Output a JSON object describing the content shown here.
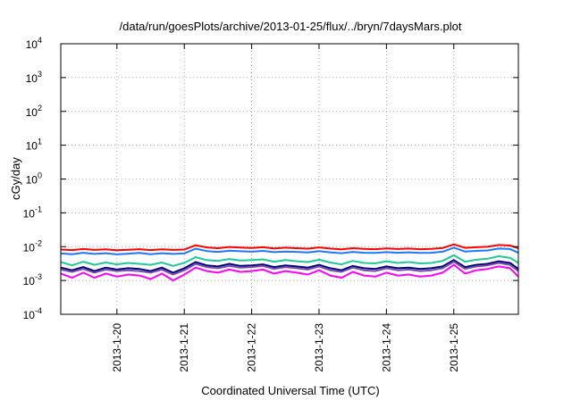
{
  "chart_data": {
    "type": "line",
    "title": "/data/run/goesPlots/archive/2013-01-25/flux/../bryn/7daysMars.plot",
    "xlabel": "Coordinated Universal Time (UTC)",
    "ylabel": "cGy/day",
    "yscale": "log",
    "ylim": [
      0.0001,
      10000
    ],
    "y_ticks": [
      {
        "base": "10",
        "exp": "-4",
        "value": 0.0001
      },
      {
        "base": "10",
        "exp": "-3",
        "value": 0.001
      },
      {
        "base": "10",
        "exp": "-2",
        "value": 0.01
      },
      {
        "base": "10",
        "exp": "-1",
        "value": 0.1
      },
      {
        "base": "10",
        "exp": "0",
        "value": 1
      },
      {
        "base": "10",
        "exp": "1",
        "value": 10
      },
      {
        "base": "10",
        "exp": "2",
        "value": 100
      },
      {
        "base": "10",
        "exp": "3",
        "value": 1000
      },
      {
        "base": "10",
        "exp": "4",
        "value": 10000
      }
    ],
    "xlim": [
      "2013-01-19 04:00",
      "2013-01-25 23:00"
    ],
    "x_ticks": [
      "2013-1-20",
      "2013-1-21",
      "2013-1-22",
      "2013-1-23",
      "2013-1-24",
      "2013-1-25"
    ],
    "grid": true,
    "legend": "none",
    "x": [
      "2013-01-19 04:00",
      "2013-01-19 08:00",
      "2013-01-19 12:00",
      "2013-01-19 16:00",
      "2013-01-19 20:00",
      "2013-01-20 00:00",
      "2013-01-20 04:00",
      "2013-01-20 08:00",
      "2013-01-20 12:00",
      "2013-01-20 16:00",
      "2013-01-20 20:00",
      "2013-01-21 00:00",
      "2013-01-21 04:00",
      "2013-01-21 08:00",
      "2013-01-21 12:00",
      "2013-01-21 16:00",
      "2013-01-21 20:00",
      "2013-01-22 00:00",
      "2013-01-22 04:00",
      "2013-01-22 08:00",
      "2013-01-22 12:00",
      "2013-01-22 16:00",
      "2013-01-22 20:00",
      "2013-01-23 00:00",
      "2013-01-23 04:00",
      "2013-01-23 08:00",
      "2013-01-23 12:00",
      "2013-01-23 16:00",
      "2013-01-23 20:00",
      "2013-01-24 00:00",
      "2013-01-24 04:00",
      "2013-01-24 08:00",
      "2013-01-24 12:00",
      "2013-01-24 16:00",
      "2013-01-24 20:00",
      "2013-01-25 00:00",
      "2013-01-25 04:00",
      "2013-01-25 08:00",
      "2013-01-25 12:00",
      "2013-01-25 16:00",
      "2013-01-25 20:00",
      "2013-01-25 23:00"
    ],
    "series": [
      {
        "color": "#ff0000",
        "values": [
          0.0082,
          0.0079,
          0.0085,
          0.008,
          0.0083,
          0.0078,
          0.0081,
          0.0084,
          0.0079,
          0.0083,
          0.008,
          0.0082,
          0.011,
          0.0095,
          0.009,
          0.0098,
          0.0094,
          0.0091,
          0.0096,
          0.0089,
          0.0093,
          0.009,
          0.0087,
          0.0095,
          0.0088,
          0.0083,
          0.009,
          0.0086,
          0.0084,
          0.0089,
          0.0085,
          0.0088,
          0.0084,
          0.0086,
          0.0091,
          0.0117,
          0.0092,
          0.0096,
          0.0099,
          0.0112,
          0.0108,
          0.009
        ]
      },
      {
        "color": "#1f77ff",
        "values": [
          0.0063,
          0.006,
          0.0066,
          0.0061,
          0.0064,
          0.0059,
          0.0062,
          0.0065,
          0.006,
          0.0064,
          0.0061,
          0.0063,
          0.0087,
          0.0074,
          0.007,
          0.0076,
          0.0073,
          0.0071,
          0.0075,
          0.0069,
          0.0072,
          0.007,
          0.0067,
          0.0074,
          0.0068,
          0.0064,
          0.007,
          0.0066,
          0.0065,
          0.0069,
          0.0066,
          0.0068,
          0.0065,
          0.0066,
          0.0071,
          0.0093,
          0.0072,
          0.0075,
          0.0077,
          0.0088,
          0.0085,
          0.0066
        ]
      },
      {
        "color": "#20c997",
        "values": [
          0.0035,
          0.0028,
          0.0036,
          0.0029,
          0.0034,
          0.003,
          0.0033,
          0.0031,
          0.0029,
          0.0034,
          0.0027,
          0.0033,
          0.0049,
          0.004,
          0.0038,
          0.0043,
          0.0039,
          0.004,
          0.0042,
          0.0036,
          0.004,
          0.0037,
          0.0035,
          0.0041,
          0.0034,
          0.003,
          0.0038,
          0.0033,
          0.0032,
          0.0037,
          0.0033,
          0.0035,
          0.0032,
          0.0033,
          0.0038,
          0.0056,
          0.0036,
          0.0041,
          0.0044,
          0.0052,
          0.0047,
          0.0033
        ]
      },
      {
        "color": "#000080",
        "values": [
          0.0024,
          0.002,
          0.0025,
          0.0019,
          0.0024,
          0.0021,
          0.0023,
          0.0022,
          0.0019,
          0.0024,
          0.0017,
          0.0023,
          0.0035,
          0.0028,
          0.0026,
          0.0031,
          0.0027,
          0.0028,
          0.003,
          0.0025,
          0.0028,
          0.0026,
          0.0024,
          0.0029,
          0.0023,
          0.002,
          0.0027,
          0.0023,
          0.0022,
          0.0026,
          0.0023,
          0.0024,
          0.0022,
          0.0023,
          0.0026,
          0.004,
          0.0025,
          0.0029,
          0.0031,
          0.0037,
          0.0033,
          0.0022
        ]
      },
      {
        "color": "#7a4aa8",
        "values": [
          0.0021,
          0.0018,
          0.0022,
          0.0017,
          0.0021,
          0.0019,
          0.002,
          0.0019,
          0.0017,
          0.0021,
          0.0015,
          0.002,
          0.0031,
          0.0025,
          0.0023,
          0.0027,
          0.0024,
          0.0025,
          0.0027,
          0.0022,
          0.0025,
          0.0023,
          0.0021,
          0.0026,
          0.002,
          0.0018,
          0.0024,
          0.002,
          0.0019,
          0.0023,
          0.002,
          0.0021,
          0.0019,
          0.002,
          0.0023,
          0.0036,
          0.0022,
          0.0026,
          0.0028,
          0.0033,
          0.0029,
          0.0019
        ]
      },
      {
        "color": "#ff00ff",
        "values": [
          0.0016,
          0.0012,
          0.0017,
          0.0012,
          0.0016,
          0.0013,
          0.0015,
          0.0014,
          0.0011,
          0.0016,
          0.001,
          0.0015,
          0.0024,
          0.0019,
          0.0017,
          0.0021,
          0.0018,
          0.0019,
          0.0021,
          0.0016,
          0.0019,
          0.0017,
          0.0015,
          0.002,
          0.0014,
          0.0012,
          0.0018,
          0.0014,
          0.0013,
          0.0017,
          0.0014,
          0.0015,
          0.0013,
          0.0014,
          0.0017,
          0.0029,
          0.0016,
          0.002,
          0.0022,
          0.0026,
          0.0023,
          0.0013
        ]
      }
    ]
  }
}
